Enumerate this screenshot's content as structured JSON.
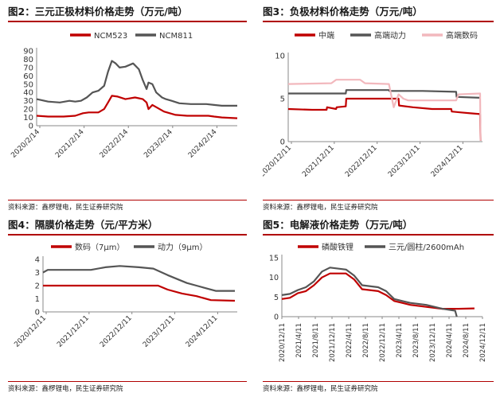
{
  "colors": {
    "red": "#c00000",
    "gray": "#555555",
    "pink": "#f2b8bd",
    "rule": "#b00000"
  },
  "source_text": "资料来源：鑫椤锂电，民生证券研究院",
  "chart_data": [
    {
      "type": "line",
      "title": "图2：三元正极材料价格走势（万元/吨）",
      "legend": [
        "NCM523",
        "NCM811"
      ],
      "x_ticks": [
        "2020/2/14",
        "2021/2/14",
        "2022/2/14",
        "2023/2/14",
        "2024/2/14"
      ],
      "xrange": [
        0,
        5.2
      ],
      "y_ticks": [
        "0",
        "10",
        "20",
        "30",
        "40",
        "50",
        "60",
        "70",
        "80",
        "90"
      ],
      "ylim": [
        0,
        90
      ],
      "series": [
        {
          "name": "NCM523",
          "color": "#c00000",
          "x": [
            0,
            0.3,
            0.7,
            1.0,
            1.2,
            1.35,
            1.6,
            1.75,
            1.85,
            1.95,
            2.1,
            2.3,
            2.55,
            2.65,
            2.75,
            2.85,
            2.9,
            3.0,
            3.3,
            3.6,
            3.9,
            4.2,
            4.45,
            4.6,
            4.8,
            5.2
          ],
          "values": [
            12,
            11,
            11,
            12,
            15,
            16,
            16,
            20,
            28,
            36,
            35,
            32,
            34,
            33,
            32,
            28,
            20,
            25,
            17,
            13,
            12,
            12,
            12,
            11,
            10,
            9
          ]
        },
        {
          "name": "NCM811",
          "color": "#555555",
          "x": [
            0,
            0.1,
            0.3,
            0.6,
            0.85,
            1.0,
            1.15,
            1.3,
            1.45,
            1.6,
            1.75,
            1.85,
            1.95,
            2.05,
            2.15,
            2.3,
            2.5,
            2.65,
            2.75,
            2.85,
            2.9,
            3.0,
            3.1,
            3.25,
            3.35,
            3.5,
            3.7,
            4.0,
            4.2,
            4.4,
            4.6,
            4.8,
            5.2
          ],
          "values": [
            32,
            31,
            29,
            28,
            30,
            29,
            30,
            34,
            40,
            42,
            48,
            65,
            78,
            75,
            70,
            71,
            75,
            68,
            55,
            44,
            52,
            50,
            40,
            34,
            32,
            30,
            27,
            26,
            26,
            26,
            25,
            24,
            24
          ]
        }
      ]
    },
    {
      "type": "line",
      "title": "图3：负极材料价格走势（万元/吨）",
      "legend": [
        "中端",
        "高端动力",
        "高端数码"
      ],
      "x_ticks": [
        "2020/12/11",
        "2021/12/11",
        "2022/12/11",
        "2023/12/11",
        "2024/12/11"
      ],
      "xrange": [
        0,
        4.05
      ],
      "y_ticks": [
        "0",
        "5",
        "10"
      ],
      "ylim": [
        0,
        10
      ],
      "series": [
        {
          "name": "中端",
          "color": "#c00000",
          "x": [
            0,
            0.5,
            0.8,
            0.81,
            1.0,
            1.01,
            1.2,
            1.21,
            2.0,
            2.3,
            2.31,
            2.6,
            3.0,
            3.4,
            3.41,
            3.6,
            3.8,
            4.0,
            4.01
          ],
          "values": [
            3.8,
            3.7,
            3.7,
            4.0,
            3.8,
            4.0,
            4.1,
            5.0,
            5.0,
            5.0,
            4.2,
            4.0,
            3.8,
            3.8,
            3.5,
            3.4,
            3.3,
            3.2,
            0.1
          ]
        },
        {
          "name": "高端动力",
          "color": "#555555",
          "x": [
            0,
            1.2,
            1.21,
            2.0,
            2.1,
            2.11,
            2.8,
            3.5,
            3.51,
            4.0
          ],
          "values": [
            5.6,
            5.6,
            6.0,
            6.0,
            6.0,
            5.9,
            5.9,
            5.8,
            5.2,
            5.1
          ]
        },
        {
          "name": "高端数码",
          "color": "#f2b8bd",
          "x": [
            0,
            0.9,
            1.0,
            1.5,
            1.6,
            2.1,
            2.2,
            2.3,
            2.4,
            2.5,
            3.0,
            3.5,
            3.55,
            4.0,
            4.01
          ],
          "values": [
            6.7,
            6.8,
            7.2,
            7.2,
            6.8,
            6.7,
            4.0,
            5.5,
            5.0,
            4.8,
            4.8,
            4.8,
            5.5,
            5.6,
            0.1
          ]
        }
      ]
    },
    {
      "type": "line",
      "title": "图4：隔膜价格走势（元/平方米）",
      "legend": [
        "数码（7μm）",
        "动力（9μm）"
      ],
      "x_ticks": [
        "2020/12/11",
        "2021/12/11",
        "2022/12/11",
        "2023/12/11",
        "2024/12/11"
      ],
      "xrange": [
        0,
        4.05
      ],
      "y_ticks": [
        "0",
        "1",
        "2",
        "3",
        "4"
      ],
      "ylim": [
        0,
        4
      ],
      "series": [
        {
          "name": "数码（7μm）",
          "color": "#c00000",
          "x": [
            0,
            0.5,
            1.0,
            1.5,
            2.0,
            2.4,
            2.6,
            2.9,
            3.2,
            3.5,
            4.0
          ],
          "values": [
            2.0,
            2.0,
            2.0,
            2.0,
            2.0,
            2.0,
            1.7,
            1.4,
            1.2,
            0.9,
            0.85
          ]
        },
        {
          "name": "动力（9μm）",
          "color": "#555555",
          "x": [
            0,
            0.1,
            0.5,
            1.0,
            1.3,
            1.6,
            2.0,
            2.3,
            2.6,
            3.0,
            3.2,
            3.4,
            3.6,
            4.0
          ],
          "values": [
            3.0,
            3.2,
            3.2,
            3.2,
            3.4,
            3.5,
            3.4,
            3.3,
            2.8,
            2.2,
            2.0,
            1.8,
            1.6,
            1.6
          ]
        }
      ]
    },
    {
      "type": "line",
      "title": "图5：电解液价格走势（万元/吨）",
      "legend": [
        "磷酸铁锂",
        "三元/圆柱/2600mAh"
      ],
      "x_ticks": [
        "2020/12/11",
        "2021/4/11",
        "2021/8/11",
        "2021/12/11",
        "2022/4/11",
        "2022/8/11",
        "2022/12/11",
        "2023/4/11",
        "2023/8/11",
        "2023/12/11",
        "2024/4/11",
        "2024/8/11",
        "2024/12/11"
      ],
      "xrange": [
        0,
        12.5
      ],
      "y_ticks": [
        "0",
        "5",
        "10",
        "15"
      ],
      "ylim": [
        0,
        15
      ],
      "series": [
        {
          "name": "磷酸铁锂",
          "color": "#c00000",
          "x": [
            0,
            0.5,
            1.0,
            1.5,
            2.0,
            2.5,
            3.0,
            4.0,
            4.5,
            5.0,
            6.0,
            6.5,
            7.0,
            7.5,
            8.0,
            9.0,
            10.0,
            11.0,
            12.0
          ],
          "values": [
            4.5,
            4.8,
            6.0,
            6.5,
            8.0,
            10.0,
            11.0,
            11.0,
            9.5,
            7.0,
            6.5,
            5.5,
            4.0,
            3.5,
            3.0,
            2.5,
            2.0,
            2.0,
            2.1
          ]
        },
        {
          "name": "三元/圆柱/2600mAh",
          "color": "#555555",
          "x": [
            0,
            0.5,
            1.0,
            1.5,
            2.0,
            2.5,
            3.0,
            4.0,
            4.5,
            5.0,
            6.0,
            6.5,
            7.0,
            7.5,
            8.0,
            9.0,
            10.0,
            10.8,
            10.9
          ],
          "values": [
            5.5,
            5.8,
            6.8,
            7.5,
            9.0,
            11.5,
            12.5,
            12.0,
            10.5,
            8.0,
            7.5,
            6.5,
            4.5,
            4.0,
            3.5,
            3.0,
            2.0,
            1.5,
            0.0
          ]
        }
      ]
    }
  ]
}
